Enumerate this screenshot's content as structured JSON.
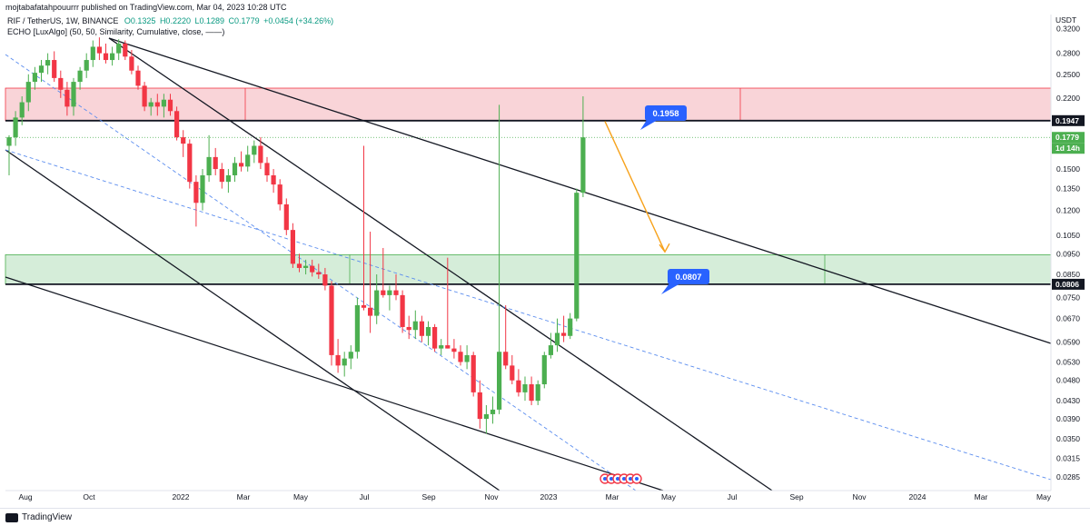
{
  "header": {
    "published": "mojtabafatahpouurrr published on TradingView.com, Mar 04, 2023 10:28 UTC"
  },
  "legend": {
    "symbol": "RIF / TetherUS, 1W, BINANCE",
    "open": "O0.1325",
    "high": "H0.2220",
    "low": "L0.1289",
    "close": "C0.1779",
    "change": "+0.0454 (+34.26%)",
    "indicator": "ECHO [LuxAlgo] (50, 50, Similarity, Cumulative, close, ——)"
  },
  "footer": {
    "brand": "TradingView"
  },
  "colors": {
    "up": "#4caf50",
    "down": "#f23645",
    "resistance_zone": "#f7c5cb",
    "support_zone": "#cbe9cf",
    "callout": "#2962ff",
    "arrow": "#f7a21b"
  },
  "chart_data": {
    "type": "candlestick",
    "title": "RIF / TetherUS, 1W, BINANCE",
    "currency": "USDT",
    "price_scale": "log",
    "ylim": [
      0.0265,
      0.345
    ],
    "y_ticks": [
      "0.3200",
      "0.2800",
      "0.2500",
      "0.2200",
      "0.1800",
      "0.1500",
      "0.1350",
      "0.1200",
      "0.1050",
      "0.0950",
      "0.0850",
      "0.0750",
      "0.0670",
      "0.0590",
      "0.0530",
      "0.0480",
      "0.0430",
      "0.0390",
      "0.0350",
      "0.0315",
      "0.0285"
    ],
    "x_ticks": [
      "Aug",
      "Oct",
      "2022",
      "Mar",
      "May",
      "Jul",
      "Sep",
      "Nov",
      "2023",
      "Mar",
      "May",
      "Jul",
      "Sep",
      "Nov",
      "2024",
      "Mar",
      "May"
    ],
    "price_labels": [
      {
        "text": "0.1947",
        "kind": "level"
      },
      {
        "text": "0.1779",
        "kind": "current"
      },
      {
        "text": "1d 14h",
        "kind": "countdown"
      },
      {
        "text": "0.0806",
        "kind": "level"
      }
    ],
    "callouts": [
      "0.1958",
      "0.0807"
    ],
    "zones": [
      {
        "name": "resistance",
        "from": 0.1947,
        "to": 0.232
      },
      {
        "name": "support",
        "from": 0.0806,
        "to": 0.0945
      }
    ],
    "candles": [
      [
        0.17,
        0.18,
        0.145,
        0.178
      ],
      [
        0.178,
        0.205,
        0.17,
        0.198
      ],
      [
        0.198,
        0.222,
        0.19,
        0.215
      ],
      [
        0.215,
        0.25,
        0.205,
        0.24
      ],
      [
        0.24,
        0.26,
        0.23,
        0.252
      ],
      [
        0.252,
        0.27,
        0.24,
        0.262
      ],
      [
        0.262,
        0.28,
        0.25,
        0.27
      ],
      [
        0.27,
        0.283,
        0.24,
        0.245
      ],
      [
        0.245,
        0.255,
        0.22,
        0.23
      ],
      [
        0.23,
        0.24,
        0.2,
        0.21
      ],
      [
        0.21,
        0.245,
        0.2,
        0.24
      ],
      [
        0.24,
        0.26,
        0.23,
        0.255
      ],
      [
        0.255,
        0.28,
        0.245,
        0.27
      ],
      [
        0.27,
        0.3,
        0.26,
        0.29
      ],
      [
        0.29,
        0.305,
        0.27,
        0.28
      ],
      [
        0.28,
        0.295,
        0.265,
        0.27
      ],
      [
        0.27,
        0.29,
        0.262,
        0.28
      ],
      [
        0.28,
        0.302,
        0.27,
        0.295
      ],
      [
        0.295,
        0.3,
        0.27,
        0.275
      ],
      [
        0.275,
        0.285,
        0.25,
        0.255
      ],
      [
        0.255,
        0.262,
        0.23,
        0.235
      ],
      [
        0.235,
        0.24,
        0.205,
        0.21
      ],
      [
        0.21,
        0.22,
        0.2,
        0.215
      ],
      [
        0.215,
        0.225,
        0.2,
        0.21
      ],
      [
        0.21,
        0.225,
        0.198,
        0.218
      ],
      [
        0.218,
        0.225,
        0.2,
        0.205
      ],
      [
        0.205,
        0.21,
        0.175,
        0.178
      ],
      [
        0.178,
        0.185,
        0.16,
        0.172
      ],
      [
        0.172,
        0.176,
        0.135,
        0.14
      ],
      [
        0.14,
        0.145,
        0.11,
        0.125
      ],
      [
        0.125,
        0.15,
        0.12,
        0.145
      ],
      [
        0.145,
        0.18,
        0.14,
        0.16
      ],
      [
        0.16,
        0.168,
        0.145,
        0.15
      ],
      [
        0.15,
        0.155,
        0.135,
        0.14
      ],
      [
        0.14,
        0.15,
        0.132,
        0.145
      ],
      [
        0.145,
        0.16,
        0.14,
        0.155
      ],
      [
        0.155,
        0.165,
        0.148,
        0.152
      ],
      [
        0.152,
        0.17,
        0.148,
        0.162
      ],
      [
        0.162,
        0.175,
        0.155,
        0.17
      ],
      [
        0.17,
        0.178,
        0.15,
        0.155
      ],
      [
        0.155,
        0.16,
        0.14,
        0.145
      ],
      [
        0.145,
        0.15,
        0.132,
        0.138
      ],
      [
        0.138,
        0.142,
        0.12,
        0.124
      ],
      [
        0.124,
        0.128,
        0.105,
        0.108
      ],
      [
        0.108,
        0.112,
        0.088,
        0.09
      ],
      [
        0.09,
        0.095,
        0.086,
        0.088
      ],
      [
        0.088,
        0.092,
        0.085,
        0.089
      ],
      [
        0.089,
        0.092,
        0.084,
        0.086
      ],
      [
        0.086,
        0.09,
        0.083,
        0.085
      ],
      [
        0.085,
        0.088,
        0.078,
        0.08
      ],
      [
        0.08,
        0.082,
        0.052,
        0.055
      ],
      [
        0.055,
        0.06,
        0.05,
        0.052
      ],
      [
        0.052,
        0.056,
        0.049,
        0.054
      ],
      [
        0.054,
        0.058,
        0.051,
        0.056
      ],
      [
        0.056,
        0.075,
        0.054,
        0.072
      ],
      [
        0.072,
        0.17,
        0.07,
        0.071
      ],
      [
        0.071,
        0.107,
        0.062,
        0.068
      ],
      [
        0.068,
        0.085,
        0.065,
        0.078
      ],
      [
        0.078,
        0.098,
        0.075,
        0.076
      ],
      [
        0.076,
        0.08,
        0.07,
        0.078
      ],
      [
        0.078,
        0.085,
        0.074,
        0.076
      ],
      [
        0.076,
        0.078,
        0.062,
        0.064
      ],
      [
        0.064,
        0.068,
        0.06,
        0.063
      ],
      [
        0.063,
        0.07,
        0.06,
        0.066
      ],
      [
        0.066,
        0.068,
        0.059,
        0.061
      ],
      [
        0.061,
        0.066,
        0.058,
        0.064
      ],
      [
        0.064,
        0.065,
        0.056,
        0.057
      ],
      [
        0.057,
        0.06,
        0.055,
        0.058
      ],
      [
        0.058,
        0.093,
        0.057,
        0.057
      ],
      [
        0.057,
        0.06,
        0.054,
        0.056
      ],
      [
        0.056,
        0.058,
        0.052,
        0.053
      ],
      [
        0.053,
        0.058,
        0.051,
        0.055
      ],
      [
        0.055,
        0.056,
        0.044,
        0.045
      ],
      [
        0.045,
        0.048,
        0.037,
        0.039
      ],
      [
        0.039,
        0.042,
        0.036,
        0.04
      ],
      [
        0.04,
        0.044,
        0.038,
        0.041
      ],
      [
        0.041,
        0.212,
        0.04,
        0.056
      ],
      [
        0.056,
        0.072,
        0.051,
        0.052
      ],
      [
        0.052,
        0.055,
        0.047,
        0.048
      ],
      [
        0.048,
        0.051,
        0.044,
        0.045
      ],
      [
        0.045,
        0.049,
        0.043,
        0.047
      ],
      [
        0.047,
        0.049,
        0.042,
        0.043
      ],
      [
        0.043,
        0.048,
        0.042,
        0.047
      ],
      [
        0.047,
        0.056,
        0.046,
        0.055
      ],
      [
        0.055,
        0.062,
        0.054,
        0.058
      ],
      [
        0.058,
        0.067,
        0.056,
        0.062
      ],
      [
        0.062,
        0.068,
        0.059,
        0.061
      ],
      [
        0.061,
        0.069,
        0.06,
        0.067
      ],
      [
        0.067,
        0.135,
        0.066,
        0.132
      ],
      [
        0.132,
        0.222,
        0.1289,
        0.1779
      ]
    ]
  }
}
